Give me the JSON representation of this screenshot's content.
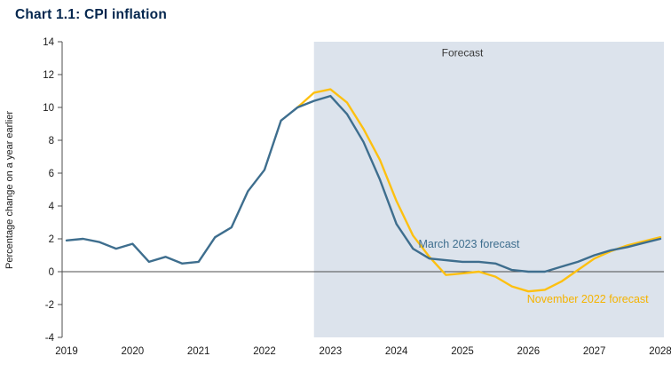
{
  "theme": {
    "title_color": "#04264e",
    "axis_color": "#4d4d4d",
    "tick_text_color": "#1a1a1a",
    "background": "#ffffff"
  },
  "chart_data": {
    "type": "line",
    "title": "Chart 1.1: CPI inflation",
    "ylabel": "Percentage change on a year earlier",
    "ylim": [
      -4,
      14
    ],
    "ytick_step": 2,
    "xlim": [
      2019,
      2028
    ],
    "xticks": [
      2019,
      2020,
      2021,
      2022,
      2023,
      2024,
      2025,
      2026,
      2027,
      2028
    ],
    "grid": false,
    "legend_position": "inline-annotations",
    "forecast_region": {
      "label": "Forecast",
      "start": 2022.75,
      "color": "#dce3ec"
    },
    "series": [
      {
        "name": "November 2022 forecast",
        "color": "#fdc010",
        "x": [
          2022.5,
          2022.75,
          2023,
          2023.25,
          2023.5,
          2023.75,
          2024,
          2024.25,
          2024.5,
          2024.75,
          2025,
          2025.25,
          2025.5,
          2025.75,
          2026,
          2026.25,
          2026.5,
          2026.75,
          2027,
          2027.25,
          2027.5,
          2027.75,
          2028
        ],
        "values": [
          10.0,
          10.9,
          11.1,
          10.3,
          8.7,
          6.8,
          4.3,
          2.2,
          0.9,
          -0.2,
          -0.1,
          0.0,
          -0.3,
          -0.9,
          -1.2,
          -1.1,
          -0.6,
          0.1,
          0.8,
          1.25,
          1.6,
          1.85,
          2.1
        ]
      },
      {
        "name": "March 2023 forecast",
        "color": "#3e6e8e",
        "x": [
          2019,
          2019.25,
          2019.5,
          2019.75,
          2020,
          2020.25,
          2020.5,
          2020.75,
          2021,
          2021.25,
          2021.5,
          2021.75,
          2022,
          2022.25,
          2022.5,
          2022.75,
          2023,
          2023.25,
          2023.5,
          2023.75,
          2024,
          2024.25,
          2024.5,
          2024.75,
          2025,
          2025.25,
          2025.5,
          2025.75,
          2026,
          2026.25,
          2026.5,
          2026.75,
          2027,
          2027.25,
          2027.5,
          2027.75,
          2028
        ],
        "values": [
          1.9,
          2.0,
          1.8,
          1.4,
          1.7,
          0.6,
          0.9,
          0.5,
          0.6,
          2.1,
          2.7,
          4.9,
          6.2,
          9.2,
          10.0,
          10.4,
          10.7,
          9.6,
          7.9,
          5.6,
          2.9,
          1.4,
          0.8,
          0.7,
          0.6,
          0.6,
          0.5,
          0.1,
          0.0,
          0.0,
          0.3,
          0.6,
          1.0,
          1.3,
          1.5,
          1.75,
          2.0
        ]
      }
    ],
    "annotations": [
      {
        "name": "forecast-label",
        "text": "Forecast",
        "x": 2025.0,
        "y": 13.1,
        "color": "#3a3a3a",
        "size": 12,
        "anchor": "middle"
      },
      {
        "name": "march-2023-forecast-label",
        "text": "March 2023 forecast",
        "x": 2025.1,
        "y": 1.45,
        "color": "#3e6e8e",
        "size": 12.5,
        "anchor": "middle"
      },
      {
        "name": "november-2022-forecast-label",
        "text": "November 2022 forecast",
        "x": 2026.9,
        "y": -1.9,
        "color": "#f5b300",
        "size": 12.5,
        "anchor": "middle"
      }
    ]
  }
}
